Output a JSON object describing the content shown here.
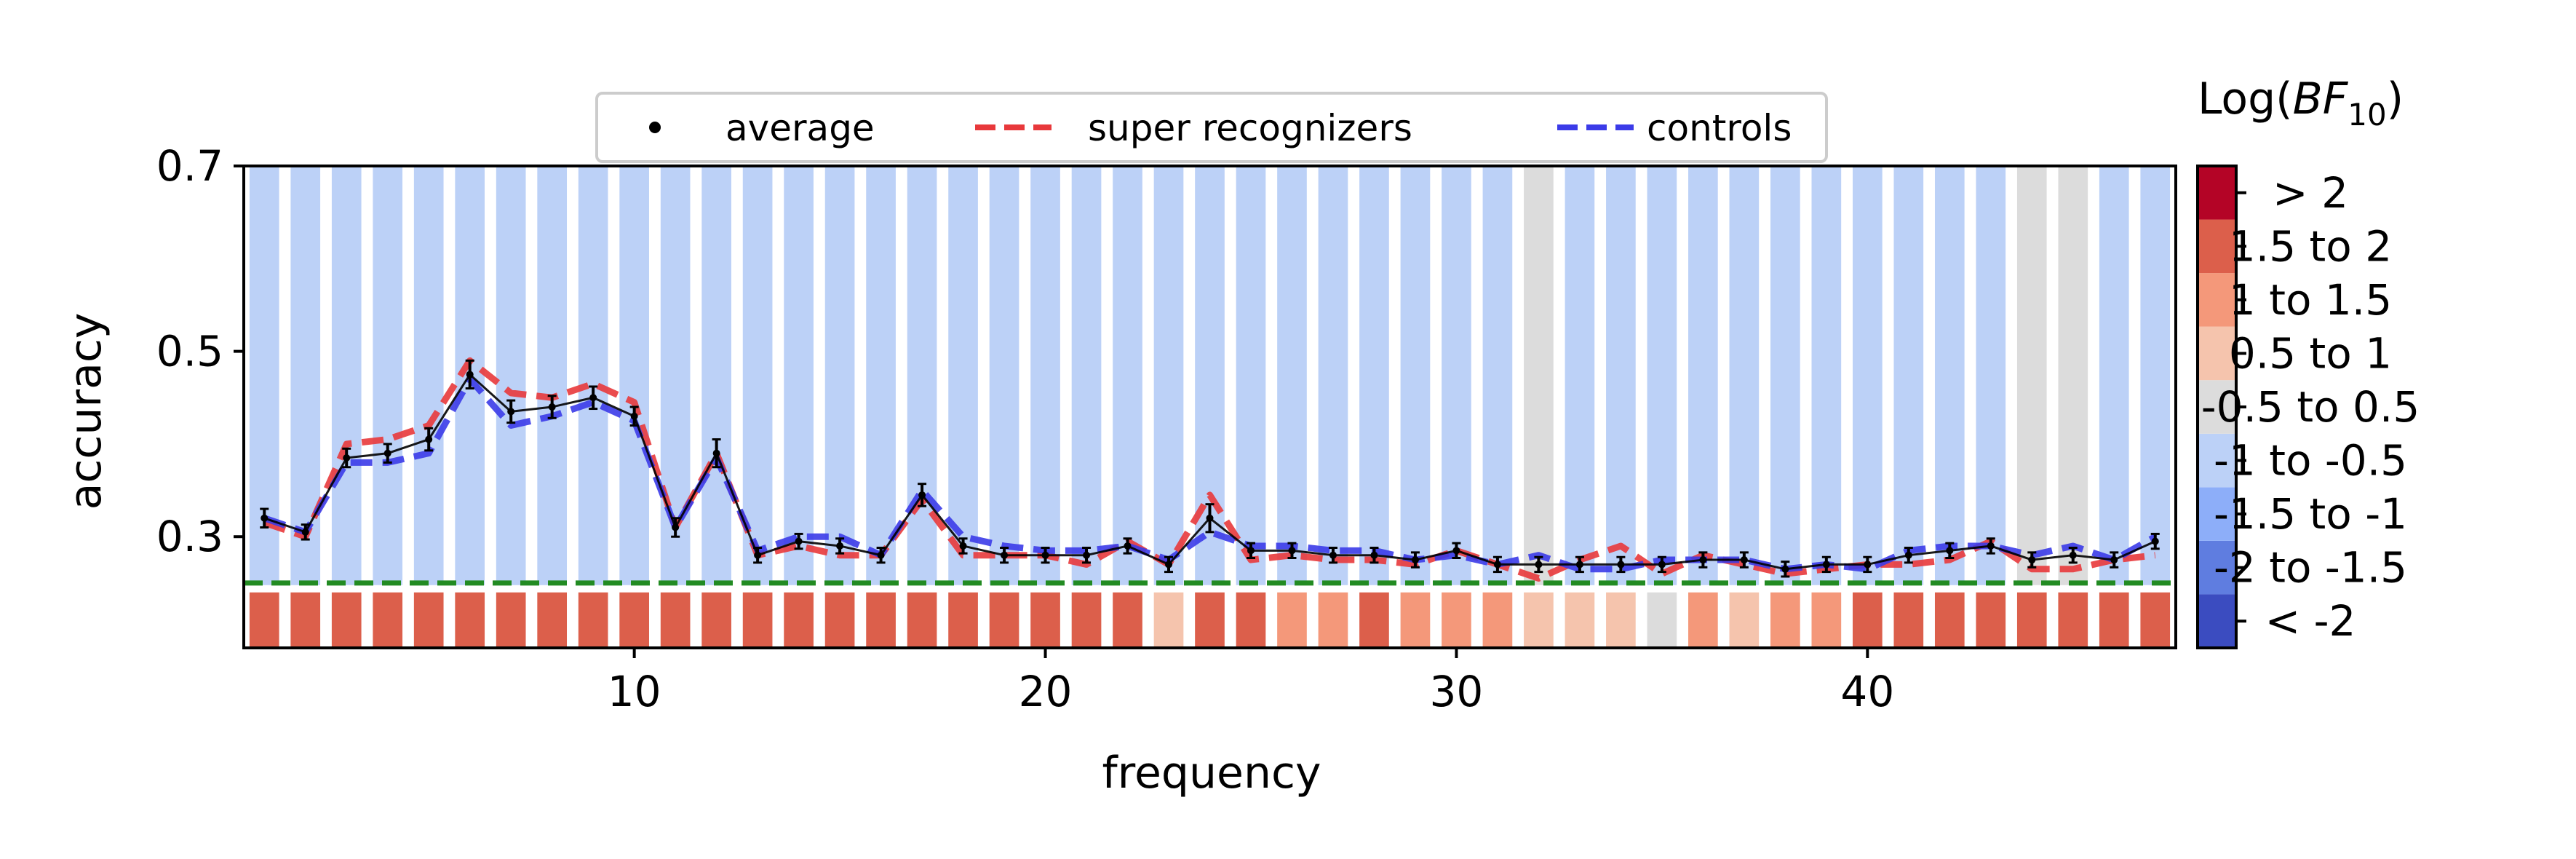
{
  "chart_data": {
    "type": "line",
    "xlabel": "frequency",
    "ylabel": "accuracy",
    "xlim": [
      0.5,
      47.5
    ],
    "ylim": [
      0.18,
      0.7
    ],
    "xticks": [
      10,
      20,
      30,
      40
    ],
    "yticks": [
      0.3,
      0.5,
      0.7
    ],
    "xtick_labels": [
      "10",
      "20",
      "30",
      "40"
    ],
    "ytick_labels": [
      "0.3",
      "0.5",
      "0.7"
    ],
    "chance_level": 0.25,
    "legend": {
      "placement": "top-center",
      "entries": [
        "average",
        "super recognizers",
        "controls"
      ]
    },
    "x": [
      1,
      2,
      3,
      4,
      5,
      6,
      7,
      8,
      9,
      10,
      11,
      12,
      13,
      14,
      15,
      16,
      17,
      18,
      19,
      20,
      21,
      22,
      23,
      24,
      25,
      26,
      27,
      28,
      29,
      30,
      31,
      32,
      33,
      34,
      35,
      36,
      37,
      38,
      39,
      40,
      41,
      42,
      43,
      44,
      45,
      46,
      47
    ],
    "series": [
      {
        "name": "average",
        "color": "#000000",
        "values": [
          0.32,
          0.305,
          0.385,
          0.39,
          0.405,
          0.475,
          0.435,
          0.44,
          0.45,
          0.43,
          0.31,
          0.39,
          0.28,
          0.295,
          0.29,
          0.28,
          0.345,
          0.29,
          0.28,
          0.28,
          0.28,
          0.29,
          0.27,
          0.32,
          0.285,
          0.285,
          0.28,
          0.28,
          0.275,
          0.285,
          0.27,
          0.27,
          0.27,
          0.27,
          0.27,
          0.275,
          0.275,
          0.265,
          0.27,
          0.27,
          0.28,
          0.285,
          0.29,
          0.275,
          0.28,
          0.275,
          0.295
        ],
        "errors": [
          0.01,
          0.008,
          0.01,
          0.01,
          0.012,
          0.015,
          0.012,
          0.012,
          0.012,
          0.01,
          0.01,
          0.015,
          0.008,
          0.008,
          0.008,
          0.008,
          0.012,
          0.008,
          0.008,
          0.008,
          0.008,
          0.008,
          0.008,
          0.015,
          0.008,
          0.008,
          0.008,
          0.008,
          0.008,
          0.008,
          0.008,
          0.008,
          0.008,
          0.008,
          0.008,
          0.008,
          0.008,
          0.008,
          0.008,
          0.008,
          0.008,
          0.008,
          0.008,
          0.008,
          0.008,
          0.008,
          0.008
        ]
      },
      {
        "name": "super recognizers",
        "color": "#e8383b",
        "values": [
          0.315,
          0.3,
          0.4,
          0.405,
          0.42,
          0.49,
          0.455,
          0.45,
          0.465,
          0.445,
          0.31,
          0.39,
          0.28,
          0.29,
          0.28,
          0.28,
          0.34,
          0.28,
          0.28,
          0.28,
          0.27,
          0.295,
          0.27,
          0.345,
          0.275,
          0.28,
          0.275,
          0.275,
          0.27,
          0.285,
          0.27,
          0.255,
          0.275,
          0.29,
          0.26,
          0.28,
          0.27,
          0.26,
          0.265,
          0.27,
          0.27,
          0.275,
          0.295,
          0.265,
          0.265,
          0.275,
          0.28
        ]
      },
      {
        "name": "controls",
        "color": "#3b3be8",
        "values": [
          0.32,
          0.305,
          0.38,
          0.38,
          0.39,
          0.47,
          0.42,
          0.43,
          0.445,
          0.425,
          0.31,
          0.385,
          0.285,
          0.3,
          0.3,
          0.28,
          0.35,
          0.3,
          0.29,
          0.285,
          0.285,
          0.29,
          0.275,
          0.305,
          0.29,
          0.29,
          0.285,
          0.285,
          0.275,
          0.28,
          0.27,
          0.28,
          0.265,
          0.265,
          0.275,
          0.275,
          0.275,
          0.265,
          0.27,
          0.265,
          0.285,
          0.29,
          0.29,
          0.28,
          0.29,
          0.275,
          0.3
        ]
      }
    ],
    "bayes_factor_bins": [
      7,
      7,
      7,
      7,
      7,
      7,
      7,
      7,
      7,
      7,
      7,
      7,
      7,
      7,
      7,
      7,
      7,
      7,
      7,
      7,
      7,
      7,
      5,
      7,
      7,
      6,
      6,
      7,
      6,
      6,
      6,
      5,
      5,
      5,
      4,
      6,
      5,
      6,
      6,
      7,
      7,
      7,
      7,
      7,
      7,
      7,
      7
    ],
    "background_bins": [
      3,
      3,
      3,
      3,
      3,
      3,
      3,
      3,
      3,
      3,
      3,
      3,
      3,
      3,
      3,
      3,
      3,
      3,
      3,
      3,
      3,
      3,
      3,
      3,
      3,
      3,
      3,
      3,
      3,
      3,
      3,
      4,
      3,
      3,
      3,
      3,
      3,
      3,
      3,
      3,
      3,
      3,
      3,
      4,
      4,
      3,
      3
    ],
    "colorbar": {
      "title_prefix": "Log(",
      "title_var": "BF",
      "title_sub": "10",
      "title_suffix": ")",
      "labels": [
        "< -2",
        "-2 to -1.5",
        "-1.5 to -1",
        "-1 to -0.5",
        "-0.5 to 0.5",
        "0.5 to 1",
        "1 to 1.5",
        "1.5 to 2",
        "> 2"
      ],
      "colors": [
        "#3b4cc0",
        "#5f7de0",
        "#8daef9",
        "#bcd1f7",
        "#dcdcdc",
        "#f5c4ad",
        "#f4987a",
        "#dc5f4b",
        "#b40426"
      ]
    }
  }
}
